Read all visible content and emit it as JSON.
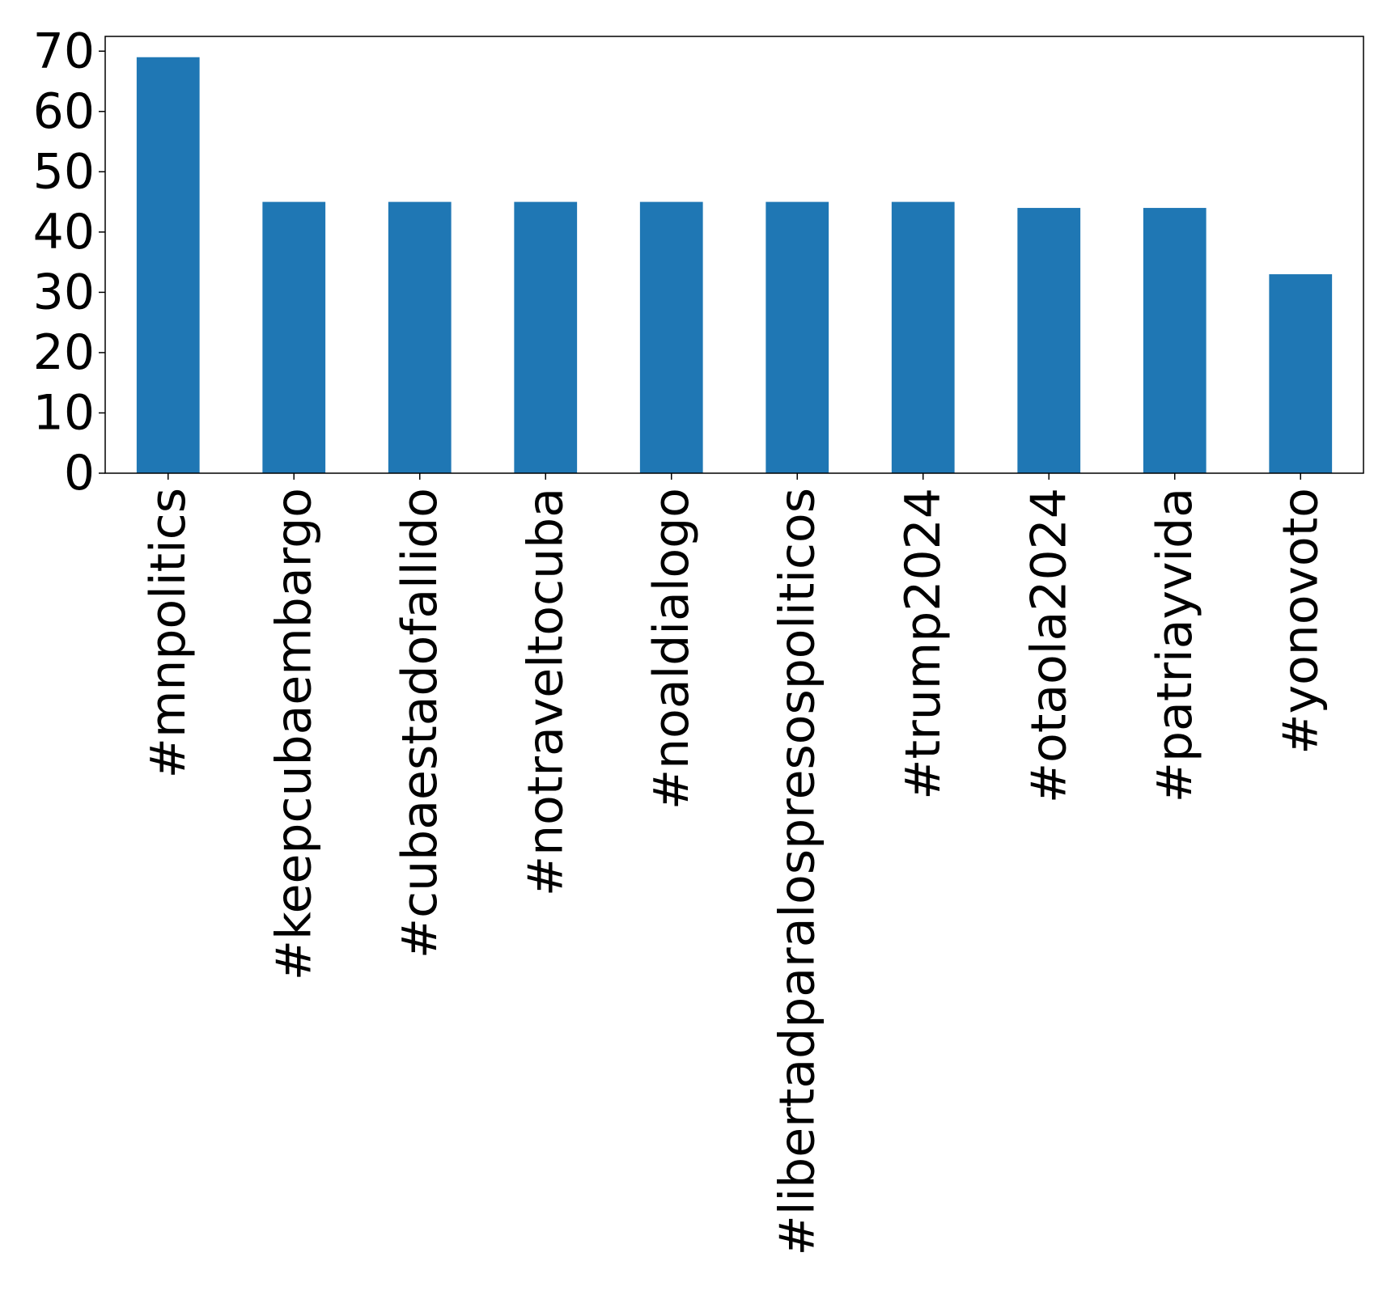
{
  "chart_data": {
    "type": "bar",
    "categories": [
      "#mnpolitics",
      "#keepcubaembargo",
      "#cubaestadofallido",
      "#notraveltocuba",
      "#noaldialogo",
      "#libertadparalospresospoliticos",
      "#trump2024",
      "#otaola2024",
      "#patriayvida",
      "#yonovoto"
    ],
    "values": [
      69,
      45,
      45,
      45,
      45,
      45,
      45,
      44,
      44,
      33
    ],
    "yticks": [
      "0",
      "10",
      "20",
      "30",
      "40",
      "50",
      "60",
      "70"
    ],
    "ylim": [
      0,
      72.45
    ],
    "grid": false,
    "bar_color": "#1f77b4"
  }
}
